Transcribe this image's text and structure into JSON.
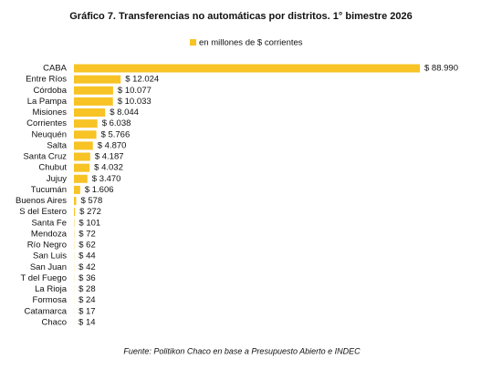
{
  "chart_data": {
    "type": "bar",
    "orientation": "horizontal",
    "title": "Gráfico 7. Transferencias no automáticas por distritos. 1° bimestre 2026",
    "source": "Fuente: Politikon Chaco en base a Presupuesto Abierto e INDEC",
    "legend": "top",
    "categories": [
      "CABA",
      "Entre Ríos",
      "Córdoba",
      "La Pampa",
      "Misiones",
      "Corrientes",
      "Neuquén",
      "Salta",
      "Santa Cruz",
      "Chubut",
      "Jujuy",
      "Tucumán",
      "Buenos Aires",
      "S del Estero",
      "Santa Fe",
      "Mendoza",
      "Río Negro",
      "San Luis",
      "San Juan",
      "T del Fuego",
      "La Rioja",
      "Formosa",
      "Catamarca",
      "Chaco"
    ],
    "series": [
      {
        "name": "en millones de $ corrientes",
        "color": "#f7c325",
        "values": [
          88990,
          12024,
          10077,
          10033,
          8044,
          6038,
          5766,
          4870,
          4187,
          4032,
          3470,
          1606,
          578,
          272,
          101,
          72,
          62,
          44,
          42,
          36,
          28,
          24,
          17,
          14
        ],
        "value_labels": [
          "$ 88.990",
          "$ 12.024",
          "$ 10.077",
          "$ 10.033",
          "$ 8.044",
          "$ 6.038",
          "$ 5.766",
          "$ 4.870",
          "$ 4.187",
          "$ 4.032",
          "$ 3.470",
          "$ 1.606",
          "$ 578",
          "$ 272",
          "$ 101",
          "$ 72",
          "$ 62",
          "$ 44",
          "$ 42",
          "$ 36",
          "$ 28",
          "$ 24",
          "$ 17",
          "$ 14"
        ]
      }
    ]
  }
}
